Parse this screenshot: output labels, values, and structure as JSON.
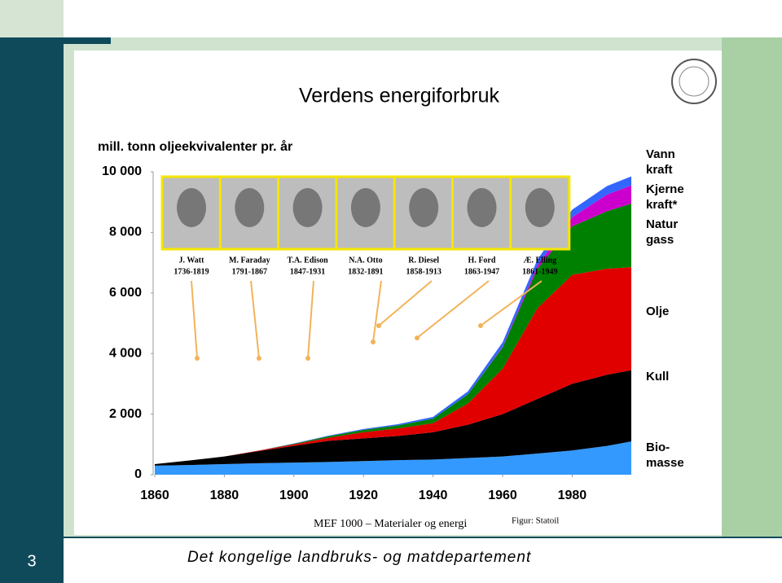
{
  "slide": {
    "title": "Verdens energiforbruk",
    "caption": "MEF 1000 – Materialer og energi",
    "source": "Figur: Statoil",
    "footer": "Det kongelige landbruks- og matdepartement",
    "page": "3",
    "portraits": [
      {
        "name": "J. Watt",
        "years": "1736-1819"
      },
      {
        "name": "M. Faraday",
        "years": "1791-1867"
      },
      {
        "name": "T.A. Edison",
        "years": "1847-1931"
      },
      {
        "name": "N.A. Otto",
        "years": "1832-1891"
      },
      {
        "name": "R. Diesel",
        "years": "1858-1913"
      },
      {
        "name": "H. Ford",
        "years": "1863-1947"
      },
      {
        "name": "Æ. Elling",
        "years": "1861-1949"
      }
    ]
  },
  "chart_data": {
    "type": "stacked-area",
    "ylabel": "mill. tonn oljeekvivalenter pr. år",
    "x": [
      1860,
      1870,
      1880,
      1890,
      1900,
      1910,
      1920,
      1930,
      1940,
      1950,
      1960,
      1970,
      1980,
      1990,
      1997
    ],
    "series": [
      {
        "name": "Bio-masse",
        "color": "#3399ff",
        "values": [
          300,
          320,
          350,
          380,
          400,
          420,
          450,
          480,
          500,
          550,
          600,
          700,
          800,
          950,
          1100
        ]
      },
      {
        "name": "Kull",
        "color": "#000000",
        "values": [
          50,
          150,
          250,
          400,
          550,
          700,
          750,
          800,
          900,
          1100,
          1400,
          1800,
          2200,
          2350,
          2350
        ]
      },
      {
        "name": "Olje",
        "color": "#e00000",
        "values": [
          0,
          0,
          0,
          20,
          50,
          100,
          200,
          250,
          300,
          700,
          1500,
          3000,
          3600,
          3500,
          3400
        ]
      },
      {
        "name": "Natur gass",
        "color": "#008000",
        "values": [
          0,
          0,
          0,
          0,
          20,
          50,
          80,
          100,
          150,
          300,
          700,
          1300,
          1600,
          1900,
          2100
        ]
      },
      {
        "name": "Kjerne kraft*",
        "color": "#cc00cc",
        "values": [
          0,
          0,
          0,
          0,
          0,
          0,
          0,
          0,
          0,
          0,
          20,
          100,
          300,
          550,
          600
        ]
      },
      {
        "name": "Vann kraft",
        "color": "#3366ff",
        "values": [
          0,
          0,
          0,
          0,
          10,
          20,
          30,
          40,
          60,
          100,
          150,
          200,
          250,
          280,
          300
        ]
      }
    ],
    "xlim": [
      1860,
      1997
    ],
    "xticks": [
      1860,
      1880,
      1900,
      1920,
      1940,
      1960,
      1980
    ],
    "ylim": [
      0,
      10000
    ],
    "yticks": [
      0,
      {
        "value": 2000,
        "label": "2 000"
      },
      {
        "value": 4000,
        "label": "4 000"
      },
      {
        "value": 6000,
        "label": "6 000"
      },
      {
        "value": 8000,
        "label": "8 000"
      },
      {
        "value": 10000,
        "label": "10 000"
      }
    ]
  }
}
